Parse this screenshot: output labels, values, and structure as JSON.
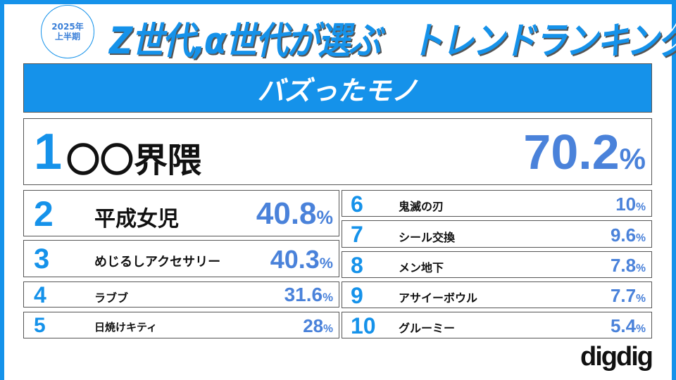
{
  "badge": {
    "year": "2025年",
    "period": "上半期"
  },
  "title": "Z世代,α世代が選ぶ　トレンドランキング",
  "category": "バズったモノ",
  "percent_sign": "%",
  "ranking": [
    {
      "rank": "1",
      "name": "〇〇界隈",
      "value": "70.2"
    },
    {
      "rank": "2",
      "name": "平成女児",
      "value": "40.8"
    },
    {
      "rank": "3",
      "name": "めじるしアクセサリー",
      "value": "40.3"
    },
    {
      "rank": "4",
      "name": "ラブブ",
      "value": "31.6"
    },
    {
      "rank": "5",
      "name": "日焼けキティ",
      "value": "28"
    },
    {
      "rank": "6",
      "name": "鬼滅の刃",
      "value": "10"
    },
    {
      "rank": "7",
      "name": "シール交換",
      "value": "9.6"
    },
    {
      "rank": "8",
      "name": "メン地下",
      "value": "7.8"
    },
    {
      "rank": "9",
      "name": "アサイーボウル",
      "value": "7.7"
    },
    {
      "rank": "10",
      "name": "グルーミー",
      "value": "5.4"
    }
  ],
  "logo": "digdig",
  "colors": {
    "accent": "#1592ea",
    "percent": "#4a82da"
  }
}
